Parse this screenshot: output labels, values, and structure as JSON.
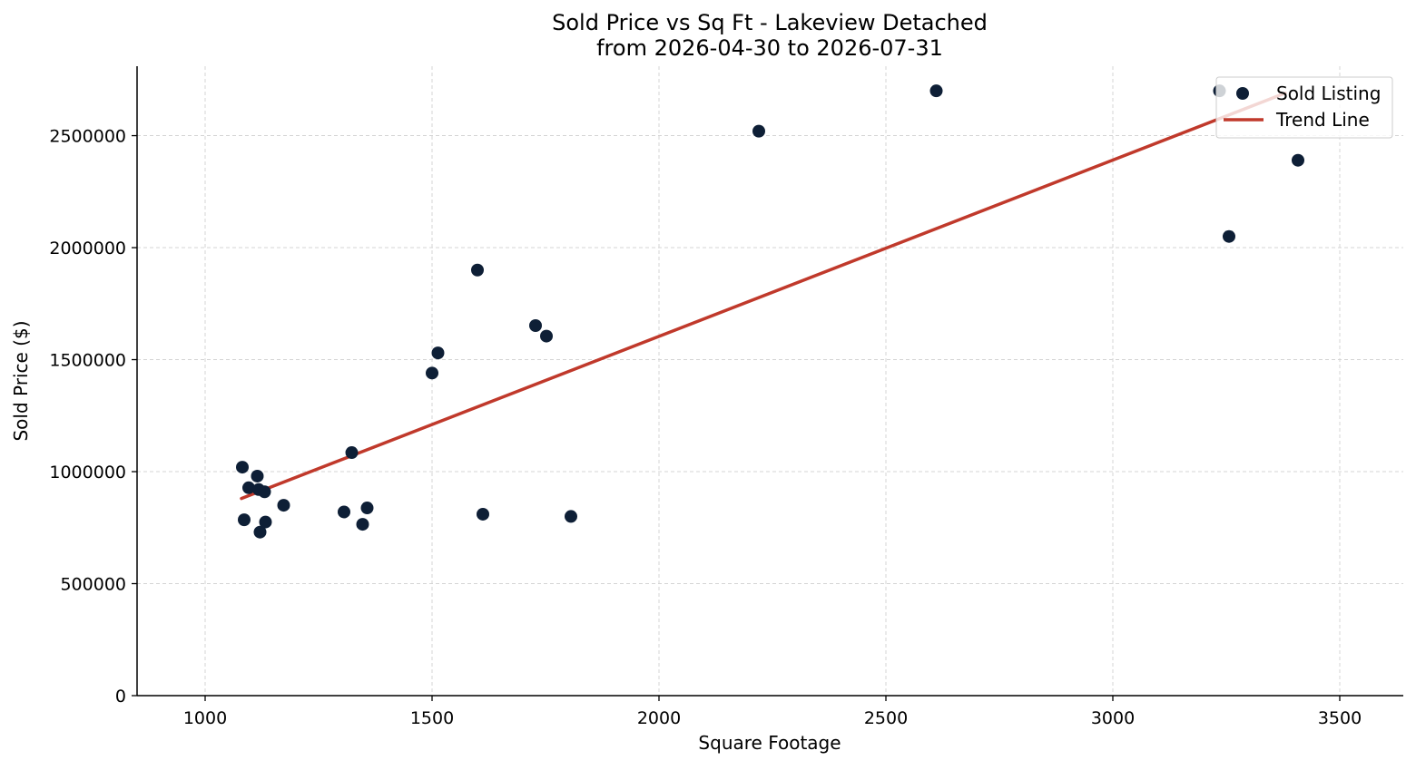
{
  "chart_data": {
    "type": "scatter",
    "title": "Sold Price vs Sq Ft - Lakeview Detached",
    "subtitle": "from 2026-04-30 to 2026-07-31",
    "xlabel": "Square Footage",
    "ylabel": "Sold Price ($)",
    "xlim": [
      850,
      3640
    ],
    "ylim": [
      0,
      2810000
    ],
    "xticks": [
      1000,
      1500,
      2000,
      2500,
      3000,
      3500
    ],
    "yticks": [
      0,
      500000,
      1000000,
      1500000,
      2000000,
      2500000
    ],
    "grid": true,
    "legend": {
      "position": "top-right",
      "entries": [
        "Sold Listing",
        "Trend Line"
      ]
    },
    "colors": {
      "points": "#0e1f36",
      "trend": "#c0392b"
    },
    "series": [
      {
        "name": "Sold Listing",
        "kind": "scatter",
        "points": [
          {
            "x": 1082,
            "y": 1020000
          },
          {
            "x": 1086,
            "y": 785000
          },
          {
            "x": 1096,
            "y": 928000
          },
          {
            "x": 1115,
            "y": 980000
          },
          {
            "x": 1118,
            "y": 920000
          },
          {
            "x": 1121,
            "y": 730000
          },
          {
            "x": 1131,
            "y": 910000
          },
          {
            "x": 1133,
            "y": 775000
          },
          {
            "x": 1173,
            "y": 850000
          },
          {
            "x": 1306,
            "y": 820000
          },
          {
            "x": 1323,
            "y": 1085000
          },
          {
            "x": 1347,
            "y": 765000
          },
          {
            "x": 1357,
            "y": 838000
          },
          {
            "x": 1500,
            "y": 1440000
          },
          {
            "x": 1513,
            "y": 1530000
          },
          {
            "x": 1600,
            "y": 1900000
          },
          {
            "x": 1612,
            "y": 810000
          },
          {
            "x": 1728,
            "y": 1652000
          },
          {
            "x": 1752,
            "y": 1605000
          },
          {
            "x": 1806,
            "y": 800000
          },
          {
            "x": 2220,
            "y": 2520000
          },
          {
            "x": 2611,
            "y": 2700000
          },
          {
            "x": 3235,
            "y": 2700000
          },
          {
            "x": 3256,
            "y": 2050000
          },
          {
            "x": 3408,
            "y": 2390000
          }
        ]
      },
      {
        "name": "Trend Line",
        "kind": "line",
        "points": [
          {
            "x": 1080,
            "y": 880000
          },
          {
            "x": 3380,
            "y": 2690000
          }
        ]
      }
    ]
  }
}
